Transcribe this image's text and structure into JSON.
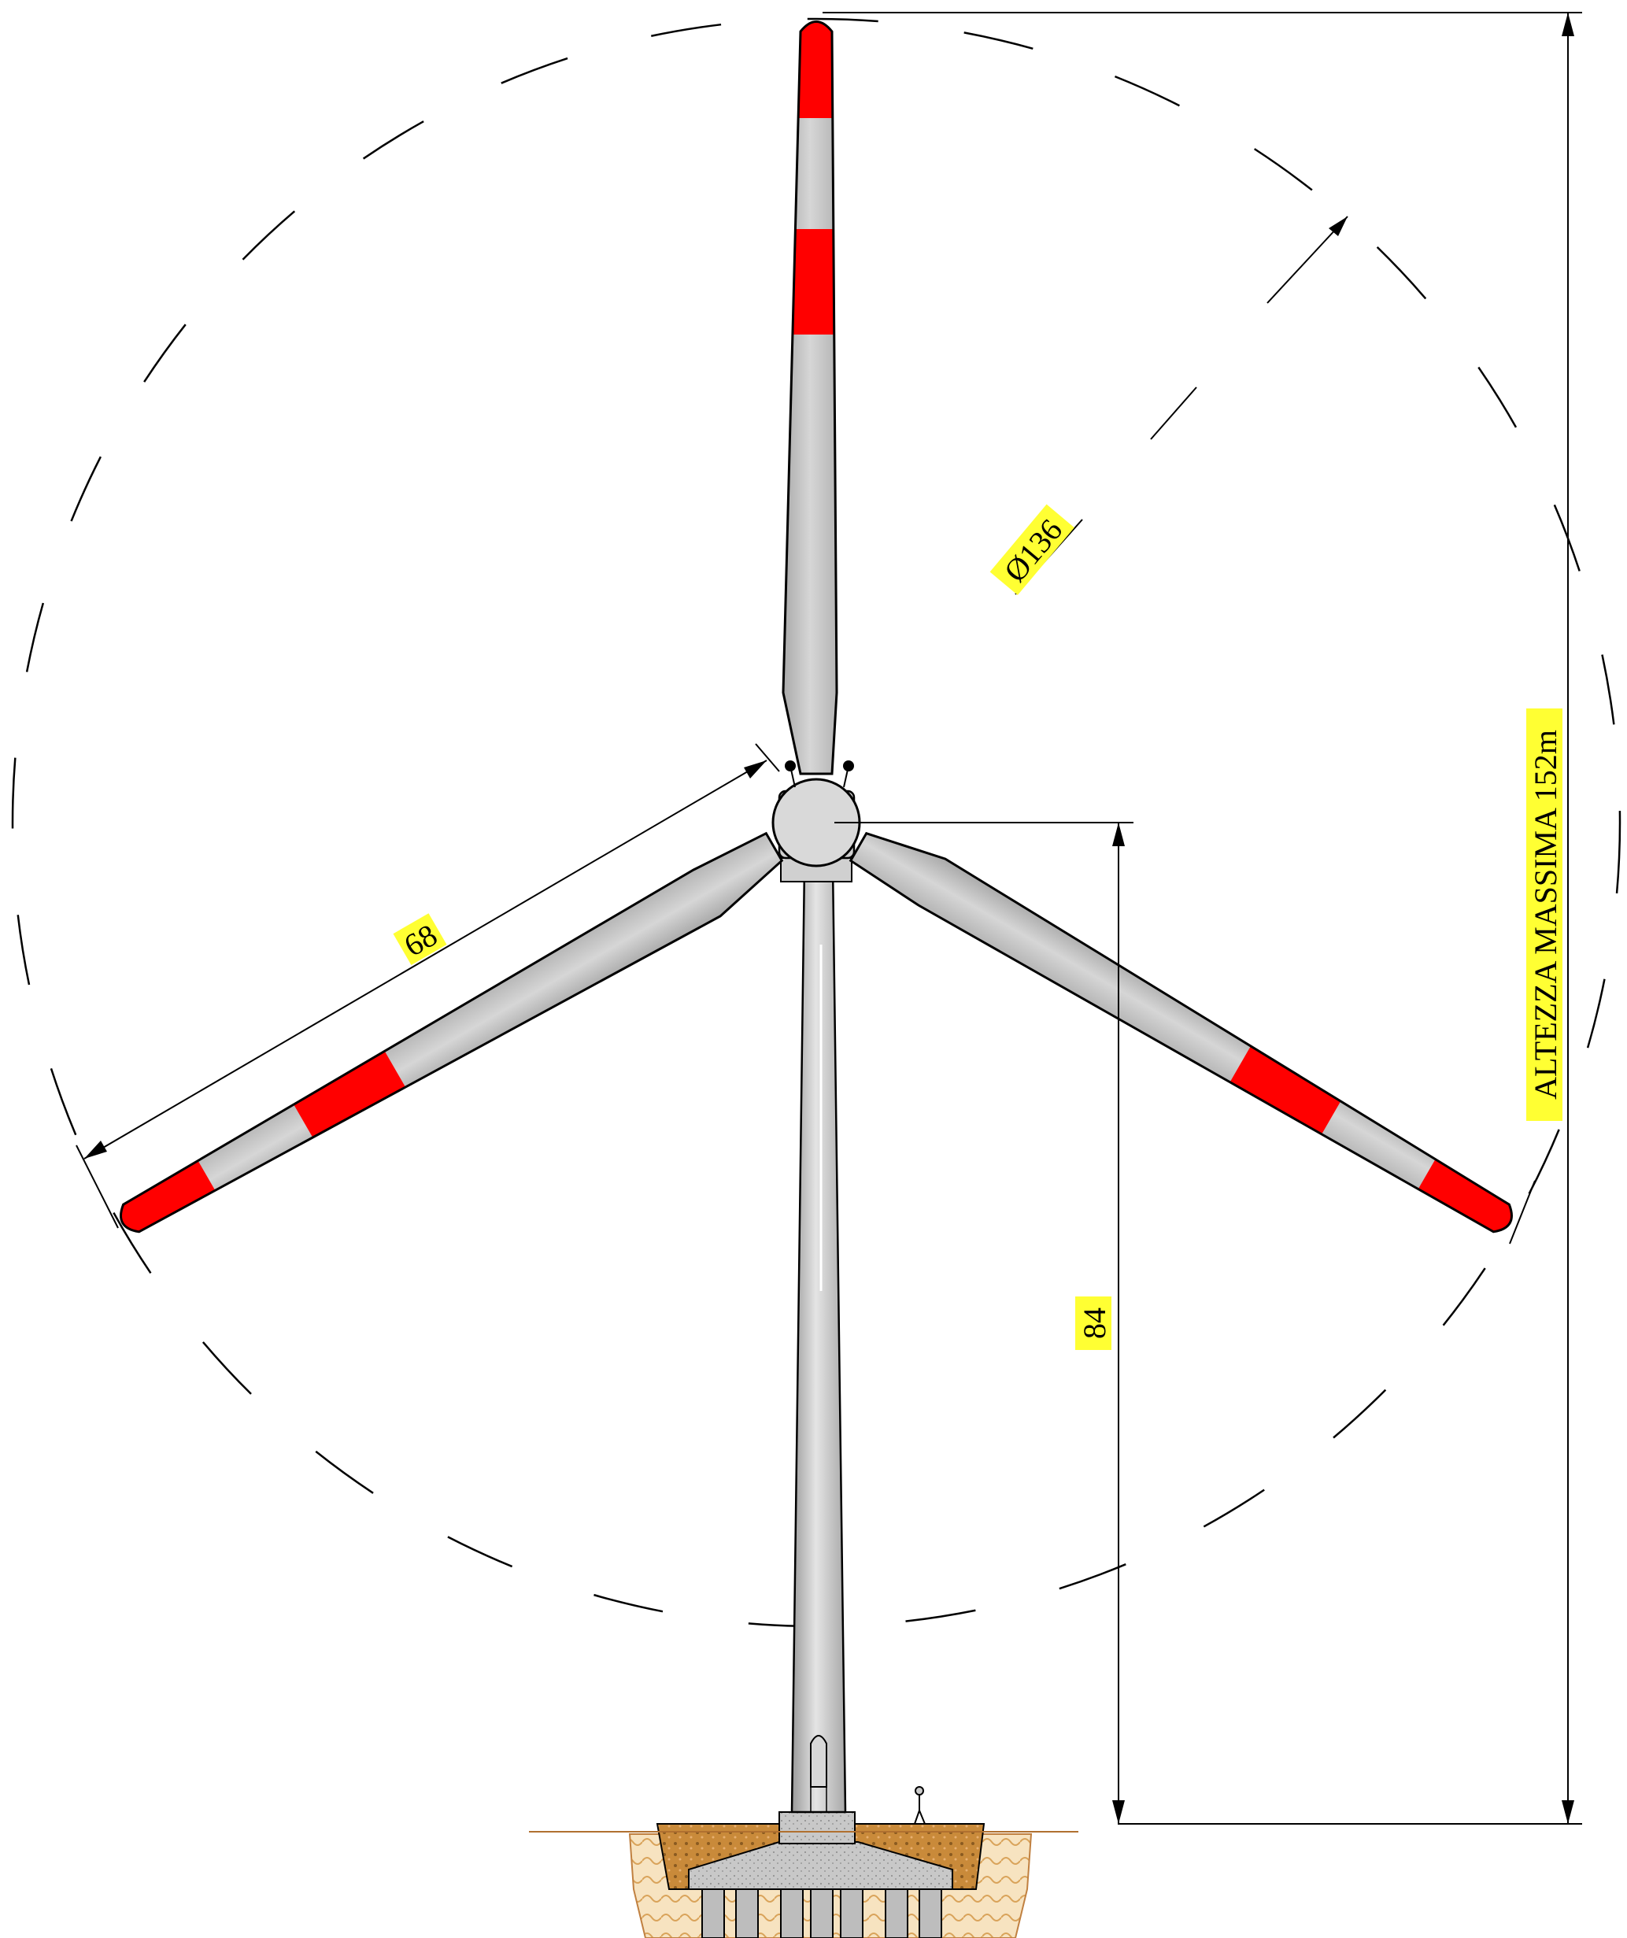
{
  "labels": {
    "rotor_diameter": "Ø136",
    "blade_length": "68",
    "hub_height": "84",
    "max_height": "ALTEZZA MASSIMA 152m"
  }
}
